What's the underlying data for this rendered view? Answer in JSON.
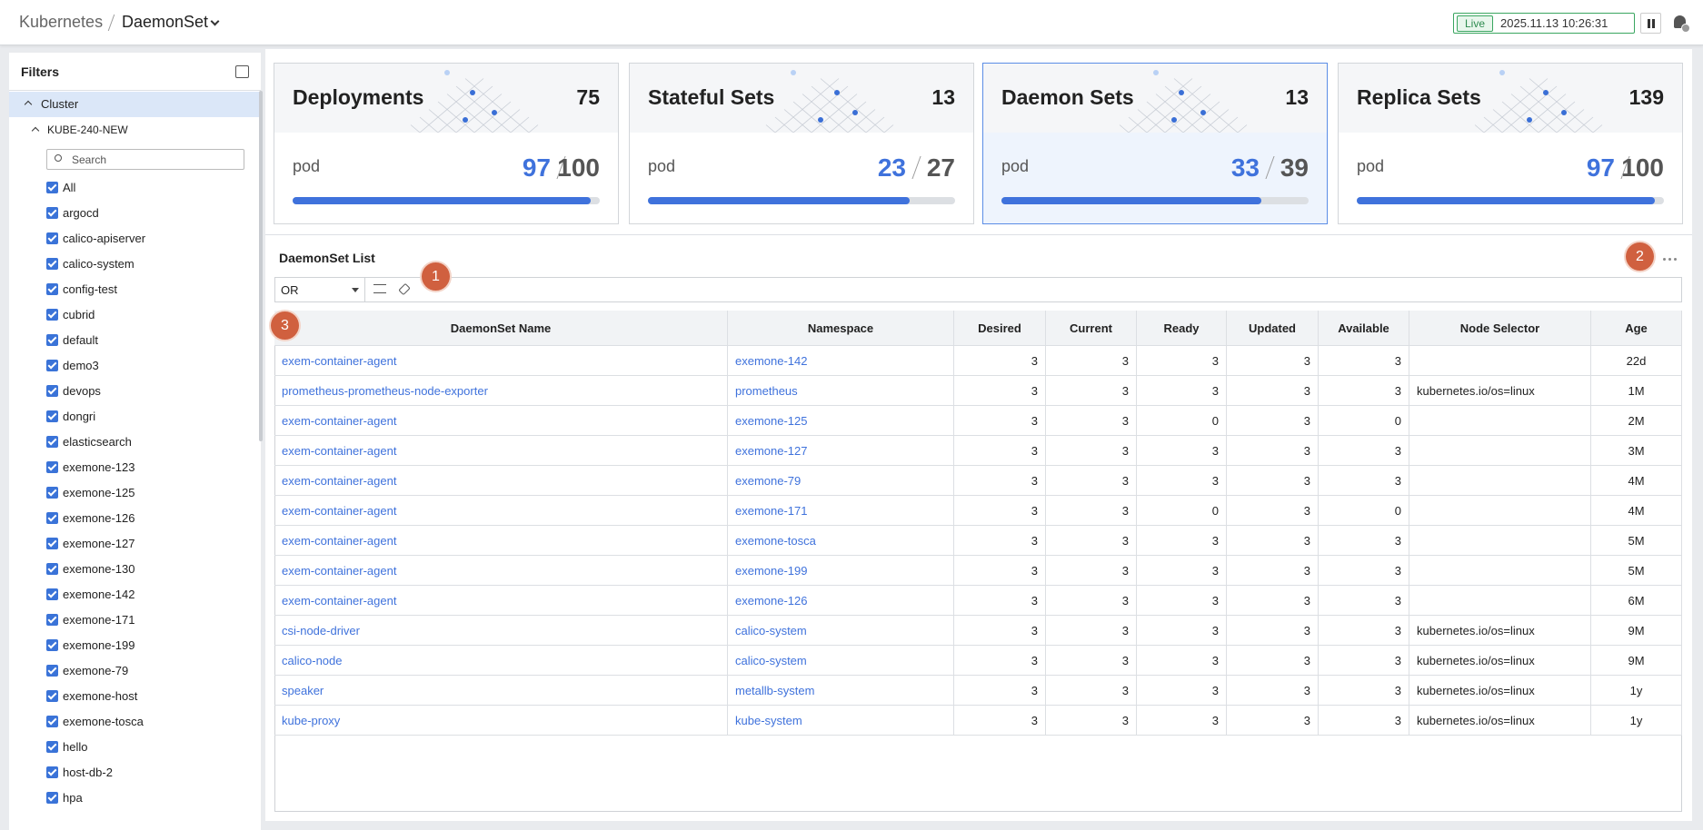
{
  "header": {
    "breadcrumb": [
      "Kubernetes",
      "DaemonSet"
    ],
    "status": "Live",
    "timestamp": "2025.11.13 10:26:31"
  },
  "filters": {
    "title": "Filters",
    "group": "Cluster",
    "cluster": "KUBE-240-NEW",
    "search_placeholder": "Search",
    "items": [
      "All",
      "argocd",
      "calico-apiserver",
      "calico-system",
      "config-test",
      "cubrid",
      "default",
      "demo3",
      "devops",
      "dongri",
      "elasticsearch",
      "exemone-123",
      "exemone-125",
      "exemone-126",
      "exemone-127",
      "exemone-130",
      "exemone-142",
      "exemone-171",
      "exemone-199",
      "exemone-79",
      "exemone-host",
      "exemone-tosca",
      "hello",
      "host-db-2",
      "hpa"
    ]
  },
  "cards": [
    {
      "title": "Deployments",
      "count": 75,
      "unit": "pod",
      "ready": 97,
      "total": 100,
      "selected": false
    },
    {
      "title": "Stateful Sets",
      "count": 13,
      "unit": "pod",
      "ready": 23,
      "total": 27,
      "selected": false
    },
    {
      "title": "Daemon Sets",
      "count": 13,
      "unit": "pod",
      "ready": 33,
      "total": 39,
      "selected": true
    },
    {
      "title": "Replica Sets",
      "count": 139,
      "unit": "pod",
      "ready": 97,
      "total": 100,
      "selected": false
    }
  ],
  "list": {
    "title": "DaemonSet List",
    "operator": "OR",
    "annotations": [
      1,
      2,
      3
    ]
  },
  "table": {
    "columns": [
      "DaemonSet Name",
      "Namespace",
      "Desired",
      "Current",
      "Ready",
      "Updated",
      "Available",
      "Node Selector",
      "Age"
    ],
    "rows": [
      [
        "exem-container-agent",
        "exemone-142",
        3,
        3,
        3,
        3,
        3,
        null,
        "22d"
      ],
      [
        "prometheus-prometheus-node-exporter",
        "prometheus",
        3,
        3,
        3,
        3,
        3,
        "kubernetes.io/os=linux",
        "1M"
      ],
      [
        "exem-container-agent",
        "exemone-125",
        3,
        3,
        0,
        3,
        0,
        null,
        "2M"
      ],
      [
        "exem-container-agent",
        "exemone-127",
        3,
        3,
        3,
        3,
        3,
        null,
        "3M"
      ],
      [
        "exem-container-agent",
        "exemone-79",
        3,
        3,
        3,
        3,
        3,
        null,
        "4M"
      ],
      [
        "exem-container-agent",
        "exemone-171",
        3,
        3,
        0,
        3,
        0,
        null,
        "4M"
      ],
      [
        "exem-container-agent",
        "exemone-tosca",
        3,
        3,
        3,
        3,
        3,
        null,
        "5M"
      ],
      [
        "exem-container-agent",
        "exemone-199",
        3,
        3,
        3,
        3,
        3,
        null,
        "5M"
      ],
      [
        "exem-container-agent",
        "exemone-126",
        3,
        3,
        3,
        3,
        3,
        null,
        "6M"
      ],
      [
        "csi-node-driver",
        "calico-system",
        3,
        3,
        3,
        3,
        3,
        "kubernetes.io/os=linux",
        "9M"
      ],
      [
        "calico-node",
        "calico-system",
        3,
        3,
        3,
        3,
        3,
        "kubernetes.io/os=linux",
        "9M"
      ],
      [
        "speaker",
        "metallb-system",
        3,
        3,
        3,
        3,
        3,
        "kubernetes.io/os=linux",
        "1y"
      ],
      [
        "kube-proxy",
        "kube-system",
        3,
        3,
        3,
        3,
        3,
        "kubernetes.io/os=linux",
        "1y"
      ]
    ]
  }
}
